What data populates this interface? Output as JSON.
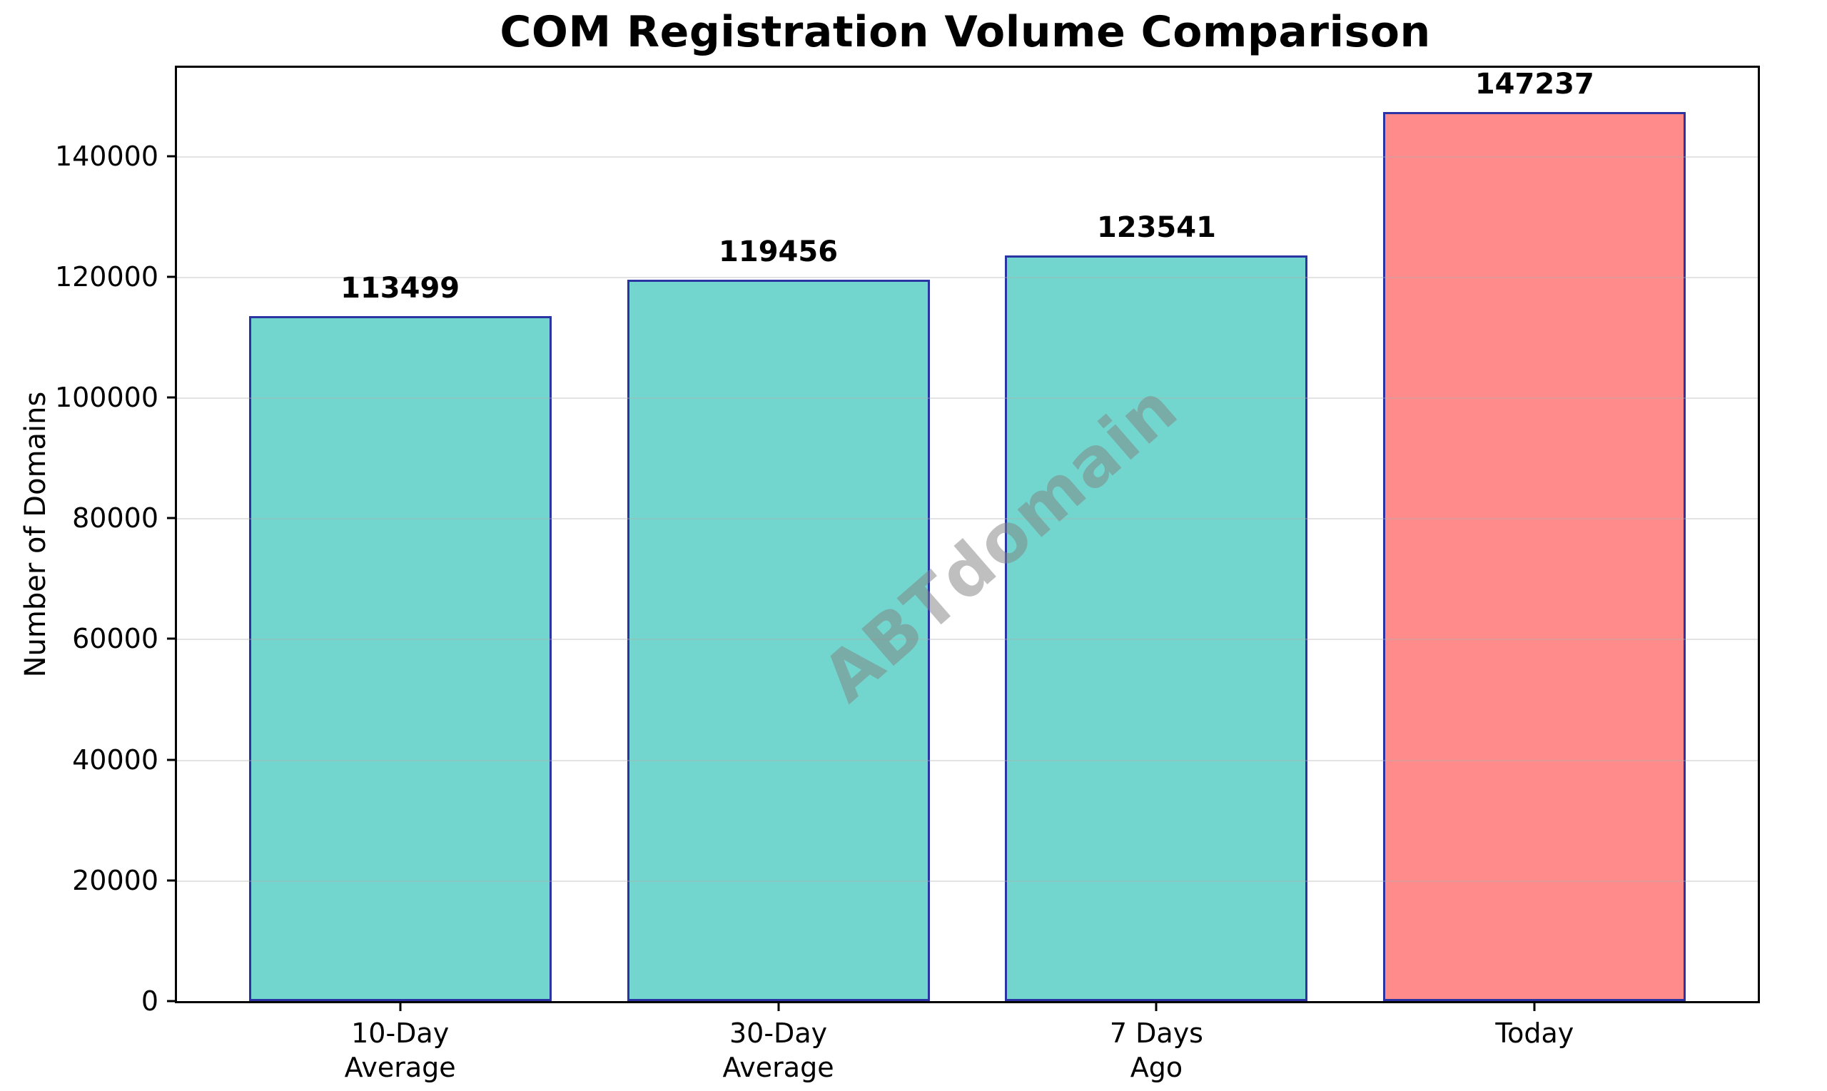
{
  "chart_data": {
    "type": "bar",
    "title": "COM Registration Volume Comparison",
    "ylabel": "Number of Domains",
    "xlabel": "",
    "categories": [
      "10-Day\nAverage",
      "30-Day\nAverage",
      "7 Days\nAgo",
      "Today"
    ],
    "values": [
      113499,
      119456,
      123541,
      147237
    ],
    "bar_fill_colors": [
      "#73D6CE",
      "#73D6CE",
      "#73D6CE",
      "#FF8B8B"
    ],
    "bar_edge_color": "#2A34A2",
    "ylim": [
      0,
      154599
    ],
    "yticks": [
      0,
      20000,
      40000,
      60000,
      80000,
      100000,
      120000,
      140000
    ],
    "grid": "horizontal-over-bars",
    "legend": "none",
    "watermark": "ABTdomain"
  }
}
